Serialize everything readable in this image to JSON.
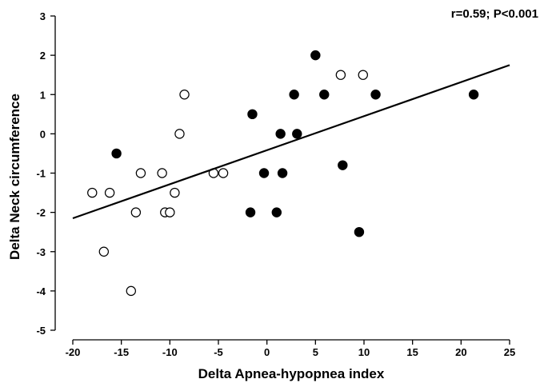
{
  "chart_data": {
    "type": "scatter",
    "xlabel": "Delta Apnea-hypopnea index",
    "ylabel": "Delta Neck circumference",
    "annotation": "r=0.59; P<0.001",
    "xlim": [
      -20,
      25
    ],
    "ylim": [
      -5,
      3
    ],
    "x_ticks": [
      -20,
      -15,
      -10,
      -5,
      0,
      5,
      10,
      15,
      20,
      25
    ],
    "y_ticks": [
      -5,
      -4,
      -3,
      -2,
      -1,
      0,
      1,
      2,
      3
    ],
    "grid": false,
    "legend": "none",
    "series": [
      {
        "marker": "open-circle",
        "points": [
          [
            -18,
            -1.5
          ],
          [
            -16.2,
            -1.5
          ],
          [
            -16.8,
            -3
          ],
          [
            -14,
            -4
          ],
          [
            -13.5,
            -2
          ],
          [
            -13,
            -1
          ],
          [
            -10.8,
            -1
          ],
          [
            -10.5,
            -2
          ],
          [
            -10,
            -2
          ],
          [
            -9.5,
            -1.5
          ],
          [
            -9,
            0
          ],
          [
            -8.5,
            1
          ],
          [
            -5.5,
            -1
          ],
          [
            -4.5,
            -1
          ],
          [
            7.6,
            1.5
          ],
          [
            9.9,
            1.5
          ]
        ]
      },
      {
        "marker": "filled-circle",
        "points": [
          [
            -15.5,
            -0.5
          ],
          [
            -1.5,
            0.5
          ],
          [
            -1.7,
            -2
          ],
          [
            -0.3,
            -1
          ],
          [
            1,
            -2
          ],
          [
            1.4,
            0
          ],
          [
            1.6,
            -1
          ],
          [
            2.8,
            1
          ],
          [
            3.1,
            0
          ],
          [
            5,
            2
          ],
          [
            5.9,
            1
          ],
          [
            7.8,
            -0.8
          ],
          [
            9.5,
            -2.5
          ],
          [
            11.2,
            1
          ],
          [
            21.3,
            1
          ]
        ]
      }
    ],
    "regression_line": {
      "x": [
        -20,
        25
      ],
      "y": [
        -2.15,
        1.75
      ]
    }
  }
}
